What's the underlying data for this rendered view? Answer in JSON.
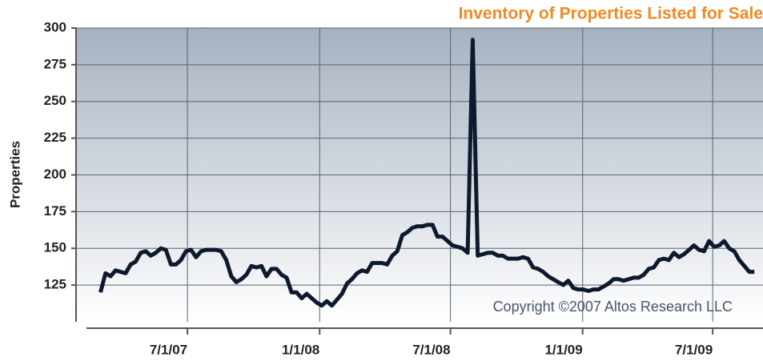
{
  "chart_data": {
    "type": "line",
    "title": "Inventory of Properties Listed for Sale",
    "y_label": "Properties",
    "annotation": "Copyright ©2007 Altos Research LLC",
    "x": [
      "2007-03-02",
      "2007-03-09",
      "2007-03-16",
      "2007-03-23",
      "2007-03-30",
      "2007-04-06",
      "2007-04-13",
      "2007-04-20",
      "2007-04-27",
      "2007-05-04",
      "2007-05-11",
      "2007-05-18",
      "2007-05-25",
      "2007-06-01",
      "2007-06-08",
      "2007-06-15",
      "2007-06-22",
      "2007-06-29",
      "2007-07-06",
      "2007-07-13",
      "2007-07-20",
      "2007-07-27",
      "2007-08-03",
      "2007-08-10",
      "2007-08-17",
      "2007-08-24",
      "2007-08-31",
      "2007-09-07",
      "2007-09-14",
      "2007-09-21",
      "2007-09-28",
      "2007-10-05",
      "2007-10-12",
      "2007-10-19",
      "2007-10-26",
      "2007-11-02",
      "2007-11-09",
      "2007-11-16",
      "2007-11-23",
      "2007-11-30",
      "2007-12-07",
      "2007-12-14",
      "2007-12-21",
      "2007-12-28",
      "2008-01-04",
      "2008-01-11",
      "2008-01-18",
      "2008-01-25",
      "2008-02-01",
      "2008-02-08",
      "2008-02-15",
      "2008-02-22",
      "2008-02-29",
      "2008-03-07",
      "2008-03-14",
      "2008-03-21",
      "2008-03-28",
      "2008-04-04",
      "2008-04-11",
      "2008-04-18",
      "2008-04-25",
      "2008-05-02",
      "2008-05-09",
      "2008-05-16",
      "2008-05-23",
      "2008-05-30",
      "2008-06-06",
      "2008-06-13",
      "2008-06-20",
      "2008-06-27",
      "2008-07-04",
      "2008-07-11",
      "2008-07-18",
      "2008-07-25",
      "2008-08-01",
      "2008-08-08",
      "2008-08-15",
      "2008-08-22",
      "2008-08-29",
      "2008-09-05",
      "2008-09-12",
      "2008-09-19",
      "2008-09-26",
      "2008-10-03",
      "2008-10-10",
      "2008-10-17",
      "2008-10-24",
      "2008-10-31",
      "2008-11-07",
      "2008-11-14",
      "2008-11-21",
      "2008-11-28",
      "2008-12-05",
      "2008-12-12",
      "2008-12-19",
      "2008-12-26",
      "2009-01-02",
      "2009-01-09",
      "2009-01-16",
      "2009-01-23",
      "2009-01-30",
      "2009-02-06",
      "2009-02-13",
      "2009-02-20",
      "2009-02-27",
      "2009-03-06",
      "2009-03-13",
      "2009-03-20",
      "2009-03-27",
      "2009-04-03",
      "2009-04-10",
      "2009-04-17",
      "2009-04-24",
      "2009-05-01",
      "2009-05-08",
      "2009-05-15",
      "2009-05-22",
      "2009-05-29",
      "2009-06-05",
      "2009-06-12",
      "2009-06-19",
      "2009-06-26",
      "2009-07-03",
      "2009-07-10",
      "2009-07-17",
      "2009-07-24",
      "2009-07-31",
      "2009-08-07",
      "2009-08-14",
      "2009-08-21",
      "2009-08-28"
    ],
    "series": [
      {
        "name": "Properties",
        "color": "#0d1a2e",
        "values": [
          120,
          133,
          131,
          135,
          134,
          133,
          139,
          141,
          147,
          148,
          145,
          147,
          150,
          149,
          139,
          139,
          142,
          148,
          149,
          144,
          148,
          149,
          149,
          149,
          148,
          142,
          131,
          127,
          129,
          132,
          138,
          137,
          138,
          131,
          136,
          136,
          132,
          130,
          120,
          120,
          116,
          119,
          116,
          113,
          111,
          114,
          111,
          115,
          119,
          126,
          129,
          133,
          135,
          134,
          140,
          140,
          140,
          139,
          145,
          148,
          159,
          161,
          164,
          165,
          165,
          166,
          166,
          158,
          158,
          155,
          152,
          151,
          150,
          147,
          292,
          145,
          146,
          147,
          147,
          145,
          145,
          143,
          143,
          143,
          144,
          143,
          137,
          136,
          134,
          131,
          129,
          127,
          125,
          128,
          123,
          122,
          122,
          121,
          122,
          122,
          124,
          126,
          129,
          129,
          128,
          129,
          130,
          130,
          132,
          136,
          137,
          142,
          143,
          142,
          147,
          144,
          146,
          149,
          152,
          149,
          148,
          155,
          151,
          152,
          155,
          150,
          148,
          142,
          138,
          134,
          134
        ]
      }
    ],
    "xlim": [
      "2007-01-27",
      "2009-09-09"
    ],
    "xticks": [
      {
        "value": "2007-07-01",
        "label": "7/1/07"
      },
      {
        "value": "2008-01-01",
        "label": "1/1/08"
      },
      {
        "value": "2008-07-01",
        "label": "7/1/08"
      },
      {
        "value": "2009-01-01",
        "label": "1/1/09"
      },
      {
        "value": "2009-07-01",
        "label": "7/1/09"
      }
    ],
    "ylim": [
      100,
      300
    ],
    "yticks": [
      125,
      150,
      175,
      200,
      225,
      250,
      275,
      300
    ],
    "grid": true,
    "title_color": "#f08a24"
  }
}
